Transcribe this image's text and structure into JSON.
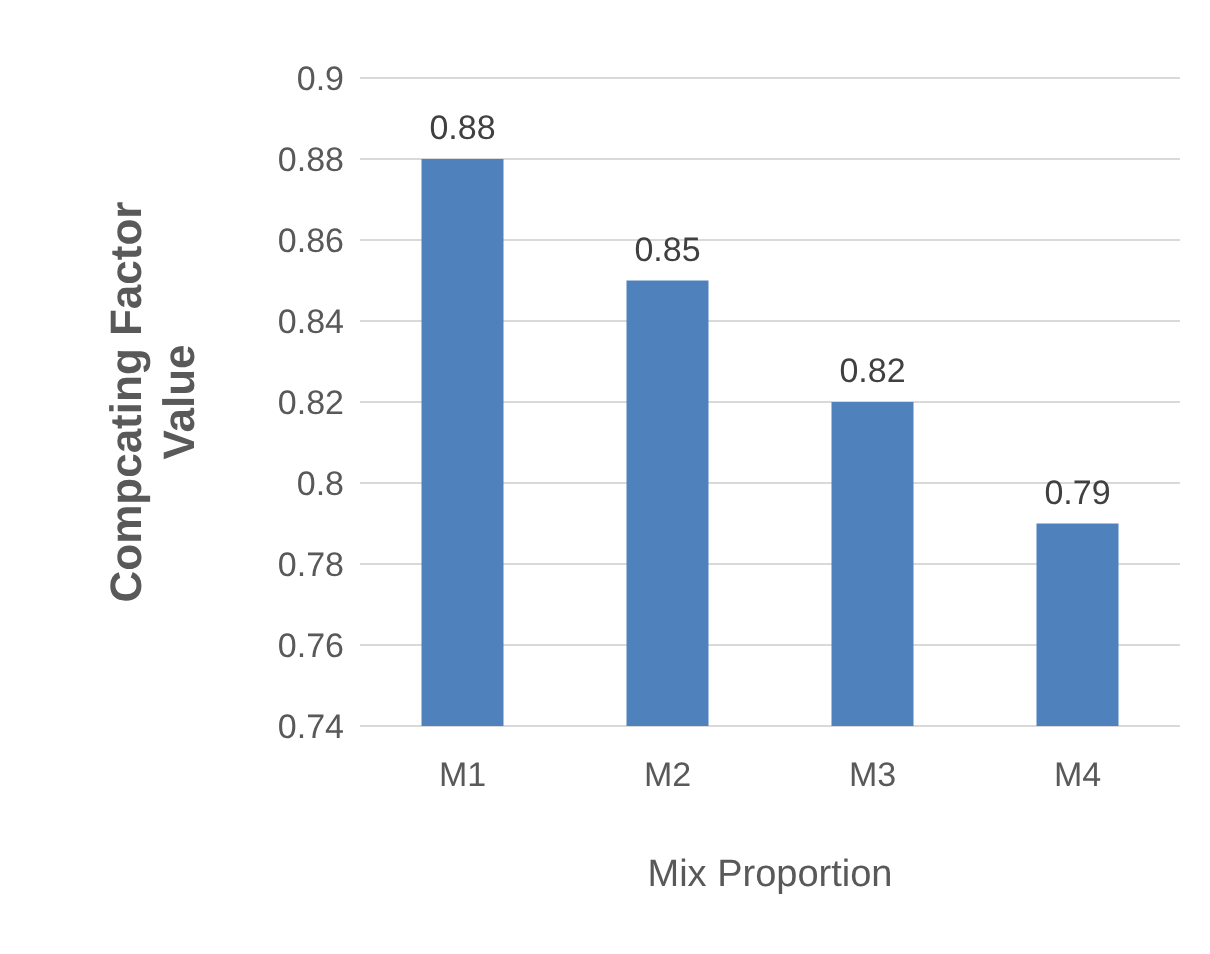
{
  "chart_data": {
    "type": "bar",
    "xlabel": "Mix Proportion",
    "ylabel": "Compcating Factor Value",
    "categories": [
      "M1",
      "M2",
      "M3",
      "M4"
    ],
    "values": [
      0.88,
      0.85,
      0.82,
      0.79
    ],
    "color": "#4f81bd",
    "ylim": [
      0.74,
      0.9
    ],
    "yticks": [
      0.74,
      0.76,
      0.78,
      0.8,
      0.82,
      0.84,
      0.86,
      0.88,
      0.9
    ],
    "grid": "y",
    "data_labels": true
  }
}
